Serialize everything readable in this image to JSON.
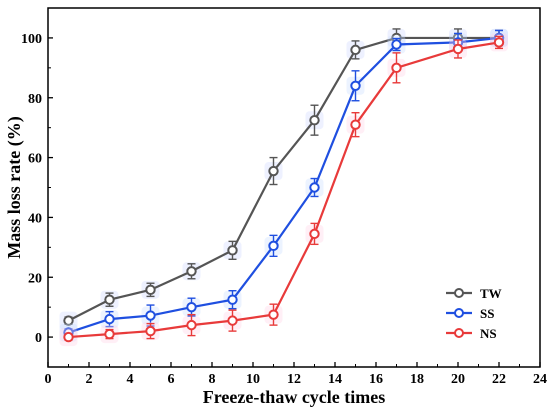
{
  "chart_data": {
    "type": "line",
    "xlabel": "Freeze-thaw cycle times",
    "ylabel": "Mass loss rate (%)",
    "xlim": [
      0,
      24
    ],
    "ylim": [
      -10,
      110
    ],
    "x_ticks": [
      0,
      2,
      4,
      6,
      8,
      10,
      12,
      14,
      16,
      18,
      20,
      22,
      24
    ],
    "y_ticks": [
      0,
      20,
      40,
      60,
      80,
      100
    ],
    "grid": false,
    "legend_position": "bottom-right",
    "x": [
      1,
      3,
      5,
      7,
      9,
      11,
      13,
      15,
      17,
      20,
      22
    ],
    "series": [
      {
        "name": "TW",
        "color": "#555555",
        "values": [
          5.5,
          12.5,
          15.8,
          22,
          29,
          55.5,
          72.5,
          96,
          100,
          100,
          100
        ],
        "errors": [
          1.2,
          2.2,
          2.2,
          2.5,
          3,
          4.5,
          5,
          3,
          3,
          3,
          2.5
        ]
      },
      {
        "name": "SS",
        "color": "#1f4fe0",
        "values": [
          1.5,
          6,
          7.2,
          10,
          12.5,
          30.5,
          50,
          84,
          97.8,
          98.5,
          100
        ],
        "errors": [
          1.2,
          2.5,
          3.5,
          3,
          3,
          3.5,
          3,
          5,
          2,
          3,
          2.5
        ]
      },
      {
        "name": "NS",
        "color": "#e83a3a",
        "values": [
          0,
          1,
          2,
          4,
          5.5,
          7.5,
          34.5,
          71,
          90,
          96.3,
          98.5
        ],
        "errors": [
          1,
          1.5,
          2.5,
          3.5,
          3.5,
          3.5,
          3.5,
          4,
          5,
          3,
          2
        ]
      }
    ]
  }
}
